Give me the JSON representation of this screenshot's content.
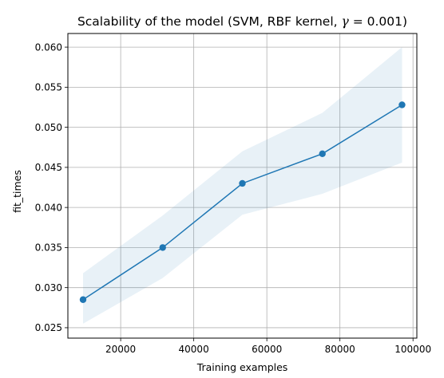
{
  "chart_data": {
    "type": "line",
    "title": "Scalability of the model (SVM, RBF kernel, γ = 0.001)",
    "xlabel": "Training examples",
    "ylabel": "fit_times",
    "xlim": [
      5550,
      101050
    ],
    "ylim": [
      0.0237,
      0.0617
    ],
    "xticks": [
      20000,
      40000,
      60000,
      80000,
      100000
    ],
    "xtick_labels": [
      "20000",
      "40000",
      "60000",
      "80000",
      "100000"
    ],
    "yticks": [
      0.025,
      0.03,
      0.035,
      0.04,
      0.045,
      0.05,
      0.055,
      0.06
    ],
    "ytick_labels": [
      "0.025",
      "0.030",
      "0.035",
      "0.040",
      "0.045",
      "0.050",
      "0.055",
      "0.060"
    ],
    "grid": true,
    "series": [
      {
        "x": [
          9700,
          31500,
          53300,
          75200,
          97000
        ],
        "y": [
          0.0285,
          0.035,
          0.043,
          0.0467,
          0.0528
        ],
        "band_lower": [
          0.0255,
          0.0312,
          0.0391,
          0.0417,
          0.0456
        ],
        "band_upper": [
          0.0318,
          0.039,
          0.047,
          0.0518,
          0.06
        ],
        "color": "#1f77b4",
        "band_color": "#1f77b4"
      }
    ]
  }
}
